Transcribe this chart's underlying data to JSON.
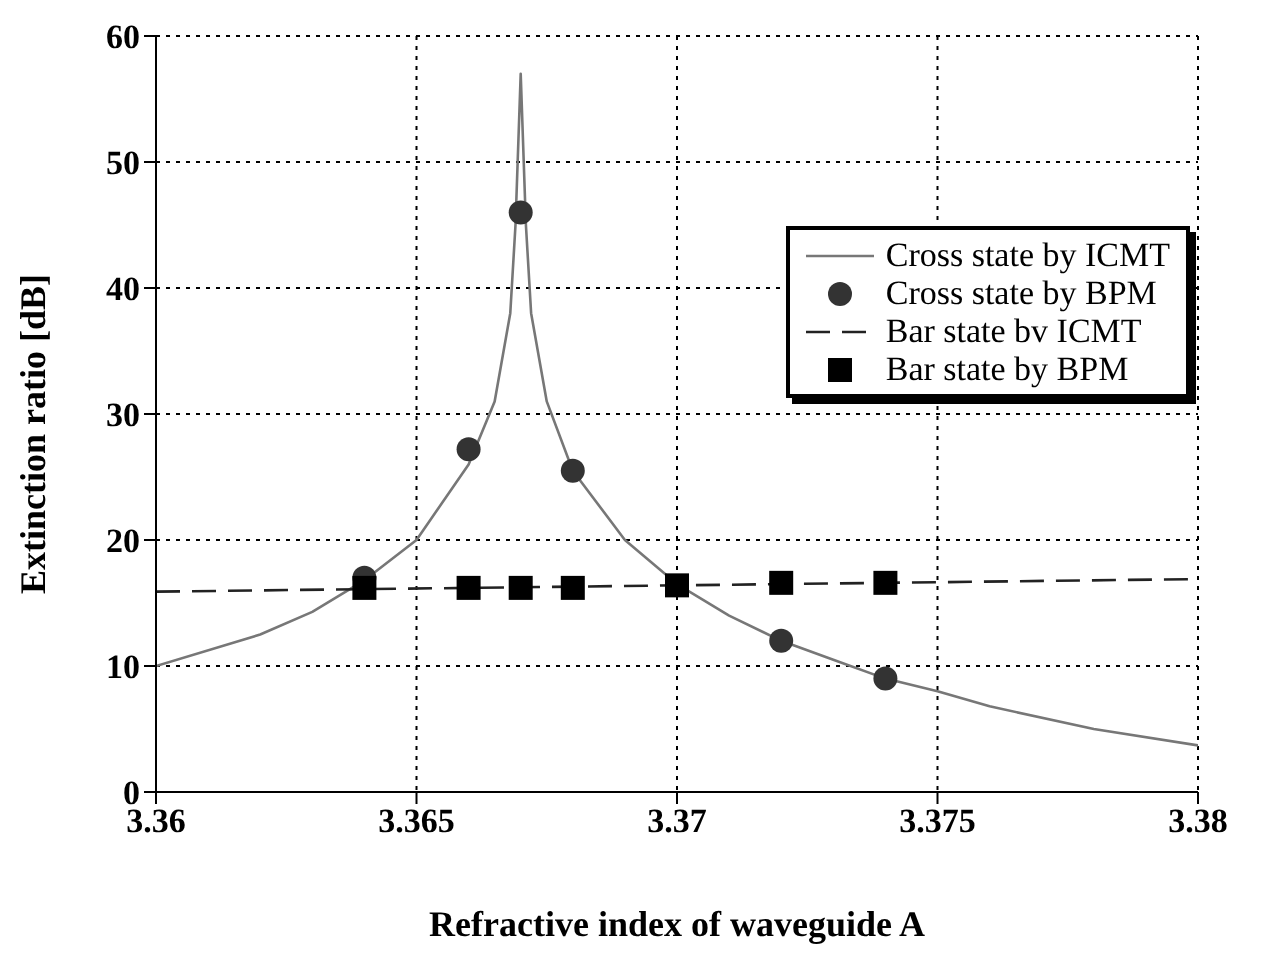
{
  "chart_data": {
    "type": "line",
    "xlabel": "Refractive index of waveguide A",
    "ylabel": "Extinction ratio [dB]",
    "xlim": [
      3.36,
      3.38
    ],
    "xticks": [
      3.36,
      3.365,
      3.37,
      3.375,
      3.38
    ],
    "ylim": [
      0,
      60
    ],
    "yticks": [
      0,
      10,
      20,
      30,
      40,
      50,
      60
    ],
    "grid": true,
    "legend": "top right",
    "series": [
      {
        "name": "Cross state by ICMT",
        "color": "#777777",
        "line_style": "solid",
        "marker": "none",
        "x": [
          3.36,
          3.362,
          3.363,
          3.364,
          3.365,
          3.366,
          3.3665,
          3.3668,
          3.3669,
          3.367,
          3.3671,
          3.3672,
          3.3675,
          3.368,
          3.369,
          3.37,
          3.371,
          3.372,
          3.373,
          3.374,
          3.375,
          3.376,
          3.378,
          3.38
        ],
        "values": [
          10,
          12.5,
          14.3,
          16.8,
          20,
          26,
          31,
          38,
          45,
          57,
          45,
          38,
          31,
          25.5,
          20,
          16.5,
          14,
          12,
          10.5,
          9,
          8,
          6.8,
          5,
          3.7
        ]
      },
      {
        "name": "Cross state by BPM",
        "type": "scatter",
        "color": "#333333",
        "marker": "circle",
        "x": [
          3.364,
          3.366,
          3.367,
          3.368,
          3.37,
          3.372,
          3.374
        ],
        "values": [
          17,
          27.2,
          46,
          25.5,
          null,
          12,
          9
        ]
      },
      {
        "name": "Bar state bv ICMT",
        "color": "#222222",
        "line_style": "dashed",
        "marker": "none",
        "x": [
          3.36,
          3.38
        ],
        "values": [
          15.9,
          16.9
        ]
      },
      {
        "name": "Bar state by BPM",
        "type": "scatter",
        "color": "#000000",
        "marker": "square",
        "x": [
          3.364,
          3.366,
          3.367,
          3.368,
          3.37,
          3.372,
          3.374
        ],
        "values": [
          16.2,
          16.2,
          16.2,
          16.2,
          16.4,
          16.6,
          16.6
        ]
      }
    ]
  }
}
